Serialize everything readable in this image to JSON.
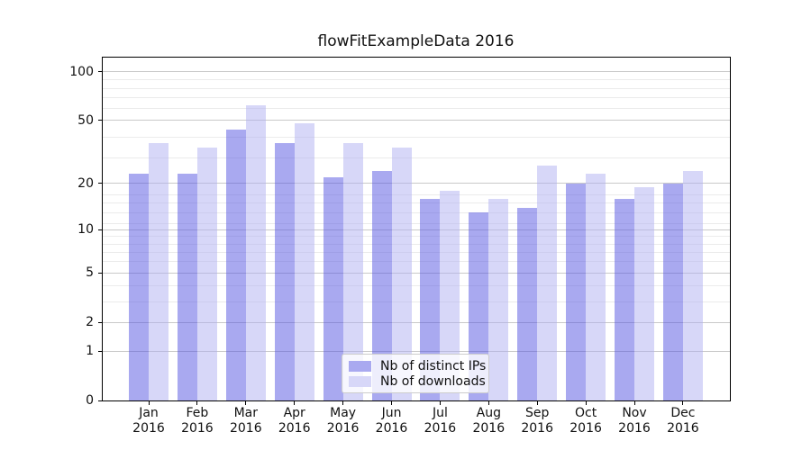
{
  "chart_data": {
    "type": "bar",
    "title": "flowFitExampleData 2016",
    "year": "2016",
    "categories": [
      "Jan",
      "Feb",
      "Mar",
      "Apr",
      "May",
      "Jun",
      "Jul",
      "Aug",
      "Sep",
      "Oct",
      "Nov",
      "Dec"
    ],
    "series": [
      {
        "name": "Nb of distinct IPs",
        "color": "#a9a9f0",
        "fill": "rgba(83,83,225,0.5)",
        "values": [
          23,
          23,
          44,
          36,
          22,
          24,
          16,
          13,
          14,
          20,
          16,
          20
        ]
      },
      {
        "name": "Nb of downloads",
        "color": "#d7d7f8",
        "fill": "rgba(175,175,241,0.5)",
        "values": [
          36,
          34,
          62,
          48,
          36,
          34,
          18,
          16,
          26,
          23,
          19,
          24
        ]
      }
    ],
    "y_axis": {
      "scale": "log10(1+x)",
      "major_ticks": [
        100,
        50,
        20,
        10,
        5,
        2,
        1,
        0
      ],
      "minor_gridlines": [
        3,
        4,
        6,
        7,
        8,
        9,
        11,
        13,
        15,
        17,
        29,
        39,
        59,
        69,
        79,
        89
      ],
      "ymax_display": 122
    },
    "grid": {
      "major_color": "#c9c9c9",
      "minor_color": "#ebebeb"
    },
    "legend_position": "lower center",
    "axis_color": "#000000",
    "background": "#ffffff"
  }
}
